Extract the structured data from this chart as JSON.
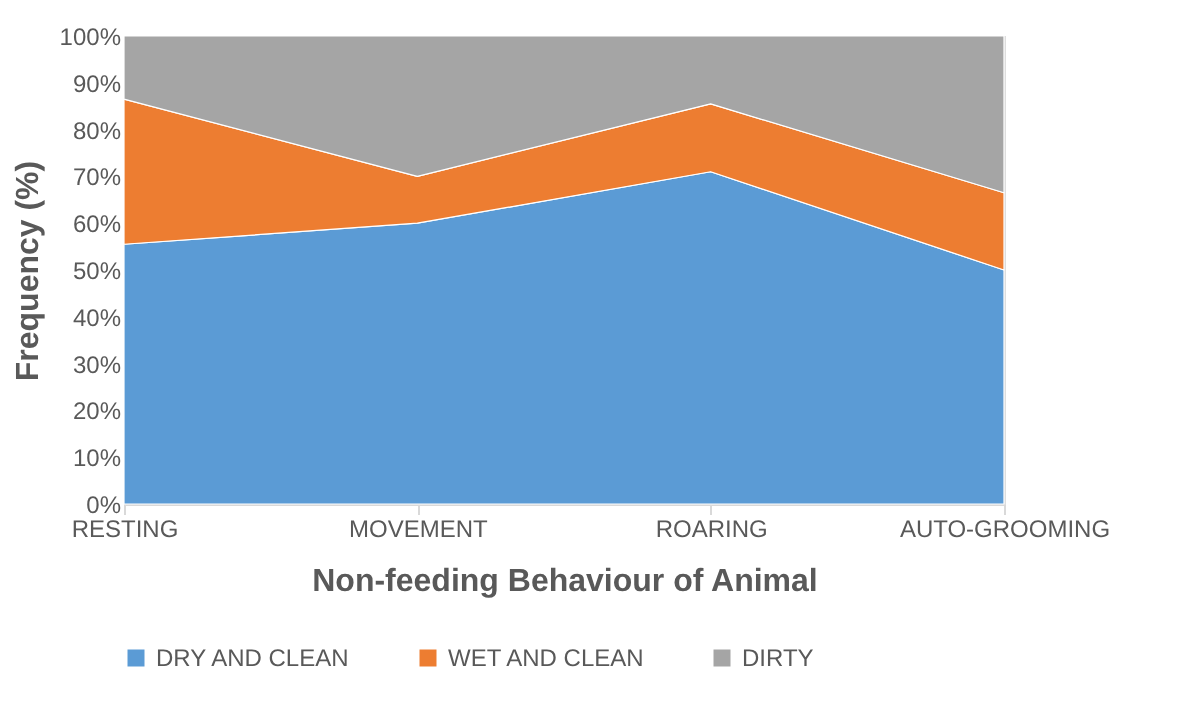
{
  "chart_data": {
    "type": "area",
    "stacked": true,
    "xlabel": "Non-feeding Behaviour of Animal",
    "ylabel": "Frequency (%)",
    "categories": [
      "RESTING",
      "MOVEMENT",
      "ROARING",
      "AUTO-GROOMING"
    ],
    "series": [
      {
        "name": "DRY AND CLEAN",
        "color": "#5b9bd5",
        "values": [
          55.5,
          60,
          71,
          50
        ]
      },
      {
        "name": "WET AND CLEAN",
        "color": "#ed7d31",
        "values": [
          31,
          10,
          14.5,
          16.5
        ]
      },
      {
        "name": "DIRTY",
        "color": "#a5a5a5",
        "values": [
          13.5,
          30,
          14.5,
          33.5
        ]
      }
    ],
    "ylim": [
      0,
      100
    ],
    "yticks": [
      {
        "value": 0,
        "label": "0%"
      },
      {
        "value": 10,
        "label": "10%"
      },
      {
        "value": 20,
        "label": "20%"
      },
      {
        "value": 30,
        "label": "30%"
      },
      {
        "value": 40,
        "label": "40%"
      },
      {
        "value": 50,
        "label": "50%"
      },
      {
        "value": 60,
        "label": "60%"
      },
      {
        "value": 70,
        "label": "70%"
      },
      {
        "value": 80,
        "label": "80%"
      },
      {
        "value": 90,
        "label": "90%"
      },
      {
        "value": 100,
        "label": "100%"
      }
    ],
    "legend": "bottom"
  }
}
